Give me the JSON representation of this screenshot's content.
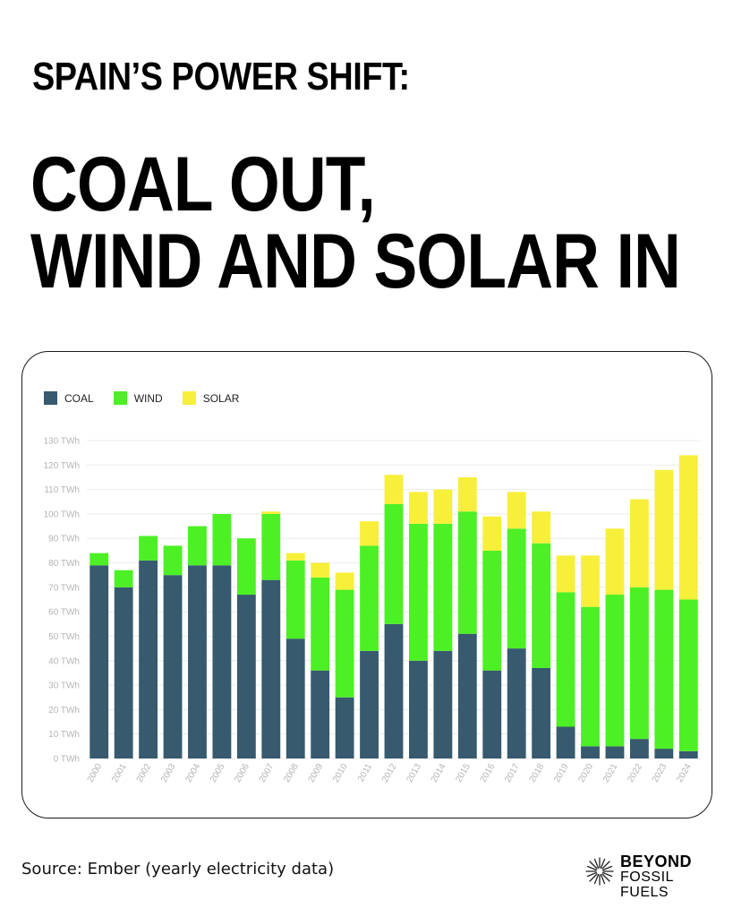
{
  "headline": {
    "line1": "SPAIN’S POWER SHIFT:",
    "line2a": "COAL OUT,",
    "line2b": "WIND AND SOLAR IN"
  },
  "source": "Source: Ember (yearly electricity data)",
  "logo": {
    "line1": "BEYOND",
    "line2": "FOSSIL FUELS",
    "icon": "starburst-icon"
  },
  "colors": {
    "coal": "#375a6e",
    "wind": "#4cf024",
    "solar": "#f7ef3a"
  },
  "chart_data": {
    "type": "bar",
    "stacked": true,
    "categories": [
      "2000",
      "2001",
      "2002",
      "2003",
      "2004",
      "2005",
      "2006",
      "2007",
      "2008",
      "2009",
      "2010",
      "2011",
      "2012",
      "2013",
      "2014",
      "2015",
      "2016",
      "2017",
      "2018",
      "2019",
      "2020",
      "2021",
      "2022",
      "2023",
      "2024"
    ],
    "series": [
      {
        "name": "COAL",
        "color": "#375a6e",
        "values": [
          79,
          70,
          81,
          75,
          79,
          79,
          67,
          73,
          49,
          36,
          25,
          44,
          55,
          40,
          44,
          51,
          36,
          45,
          37,
          13,
          5,
          5,
          8,
          4,
          3
        ]
      },
      {
        "name": "WIND",
        "color": "#4cf024",
        "values": [
          5,
          7,
          10,
          12,
          16,
          21,
          23,
          27,
          32,
          38,
          44,
          43,
          49,
          56,
          52,
          50,
          49,
          49,
          51,
          55,
          57,
          62,
          62,
          65,
          62
        ]
      },
      {
        "name": "SOLAR",
        "color": "#f7ef3a",
        "values": [
          0,
          0,
          0,
          0,
          0,
          0,
          0,
          1,
          3,
          6,
          7,
          10,
          12,
          13,
          14,
          14,
          14,
          15,
          13,
          15,
          21,
          27,
          36,
          49,
          59
        ]
      }
    ],
    "y_ticks": [
      "0 TWh",
      "10 TWh",
      "20 TWh",
      "30 TWh",
      "40 TWh",
      "50 TWh",
      "60 TWh",
      "70 TWh",
      "80 TWh",
      "90 TWh",
      "100 TWh",
      "110 TWh",
      "120 TWh",
      "130 TWh"
    ],
    "ylim": [
      0,
      130
    ],
    "yunit": "TWh",
    "grid": true,
    "legend_position": "top-left",
    "title": "",
    "xlabel": "",
    "ylabel": ""
  }
}
